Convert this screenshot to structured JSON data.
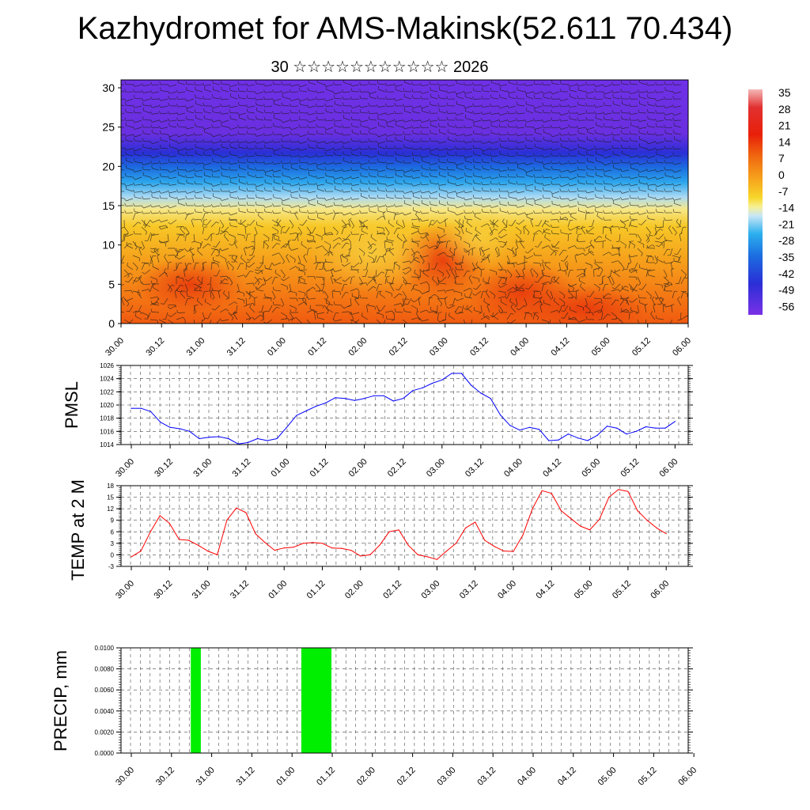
{
  "title": "Kazhydromet for AMS-Makinsk(52.611 70.434)",
  "subtitle": "30 ☆☆☆☆☆☆☆☆☆☆☆ 2026",
  "colors": {
    "pmsl_line": "#0000ff",
    "temp_line": "#ff0000",
    "precip_bar": "#00ee00",
    "grid": "#000000"
  },
  "time_labels": [
    "30.00",
    "30.12",
    "31.00",
    "31.12",
    "01.00",
    "01.12",
    "02.00",
    "02.12",
    "03.00",
    "03.12",
    "04.00",
    "04.12",
    "05.00",
    "05.12",
    "06.00"
  ],
  "chart_data": [
    {
      "type": "heatmap",
      "name": "temperature-wind-cross-section",
      "ylim": [
        0,
        30
      ],
      "yticks": [
        "0",
        "5",
        "10",
        "15",
        "20",
        "25",
        "30"
      ],
      "xticks": [
        "30.00",
        "30.12",
        "31.00",
        "31.12",
        "01.00",
        "01.12",
        "02.00",
        "02.12",
        "03.00",
        "03.12",
        "04.00",
        "04.12",
        "05.00",
        "05.12",
        "06.00"
      ],
      "colorbar_labels": [
        "35",
        "28",
        "21",
        "14",
        "7",
        "0",
        "-7",
        "-14",
        "-21",
        "-28",
        "-35",
        "-42",
        "-49",
        "-56"
      ]
    },
    {
      "type": "line",
      "name": "pmsl",
      "ylabel": "PMSL",
      "ylim": [
        1014,
        1026
      ],
      "yticks": [
        "1014",
        "1016",
        "1018",
        "1020",
        "1022",
        "1024",
        "1026"
      ],
      "xticks": [
        "30.00",
        "30.12",
        "31.00",
        "31.12",
        "01.00",
        "01.12",
        "02.00",
        "02.12",
        "03.00",
        "03.12",
        "04.00",
        "04.12",
        "05.00",
        "05.12",
        "06.00"
      ],
      "values": [
        1019.5,
        1019.5,
        1019.0,
        1017.4,
        1016.6,
        1016.4,
        1016.0,
        1014.9,
        1015.1,
        1015.2,
        1014.9,
        1014.1,
        1014.3,
        1014.9,
        1014.6,
        1014.9,
        1016.6,
        1018.4,
        1019.1,
        1019.8,
        1020.3,
        1021.1,
        1021.0,
        1020.7,
        1021.0,
        1021.4,
        1021.4,
        1020.6,
        1021.0,
        1022.2,
        1022.6,
        1023.3,
        1023.8,
        1024.8,
        1024.8,
        1023.0,
        1021.8,
        1021.0,
        1018.5,
        1016.9,
        1016.2,
        1016.6,
        1016.3,
        1014.6,
        1014.7,
        1015.6,
        1015.0,
        1014.6,
        1015.4,
        1016.8,
        1016.5,
        1015.6,
        1016.0,
        1016.7,
        1016.5,
        1016.5,
        1017.5
      ]
    },
    {
      "type": "line",
      "name": "temp-2m",
      "ylabel": "TEMP at 2 M",
      "ylim": [
        -3,
        18
      ],
      "yticks": [
        "-3",
        "0",
        "3",
        "6",
        "9",
        "12",
        "15",
        "18"
      ],
      "xticks": [
        "30.00",
        "30.12",
        "31.00",
        "31.12",
        "01.00",
        "01.12",
        "02.00",
        "02.12",
        "03.00",
        "03.12",
        "04.00",
        "04.12",
        "05.00",
        "05.12",
        "06.00"
      ],
      "values": [
        -0.5,
        1.0,
        6.0,
        10.2,
        8.2,
        4.0,
        3.8,
        2.5,
        1.0,
        0.0,
        9.0,
        12.2,
        11.0,
        5.5,
        3.2,
        1.2,
        1.8,
        2.0,
        3.0,
        3.2,
        3.0,
        1.8,
        1.7,
        1.2,
        -0.3,
        0.0,
        2.5,
        6.0,
        6.5,
        2.5,
        0.0,
        -0.5,
        -1.2,
        1.0,
        3.0,
        7.0,
        8.5,
        3.8,
        2.2,
        1.0,
        0.9,
        5.2,
        12.0,
        16.7,
        16.0,
        11.5,
        9.5,
        7.5,
        6.5,
        9.2,
        15.0,
        17.0,
        16.5,
        11.5,
        9.0,
        7.0,
        5.5
      ]
    },
    {
      "type": "bar",
      "name": "precip",
      "ylabel": "PRECIP, mm",
      "ylim": [
        0,
        0.01
      ],
      "yticks": [
        "0.0000",
        "0.0020",
        "0.0040",
        "0.0060",
        "0.0080",
        "0.0100"
      ],
      "xticks": [
        "30.00",
        "30.12",
        "31.00",
        "31.12",
        "01.00",
        "01.12",
        "02.00",
        "02.12",
        "03.00",
        "03.12",
        "04.00",
        "04.12",
        "05.00",
        "05.12",
        "06.00"
      ],
      "bars": [
        {
          "start_step": 6,
          "end_step": 7,
          "value": 0.01
        },
        {
          "start_step": 17,
          "end_step": 20,
          "value": 0.01
        }
      ]
    }
  ]
}
